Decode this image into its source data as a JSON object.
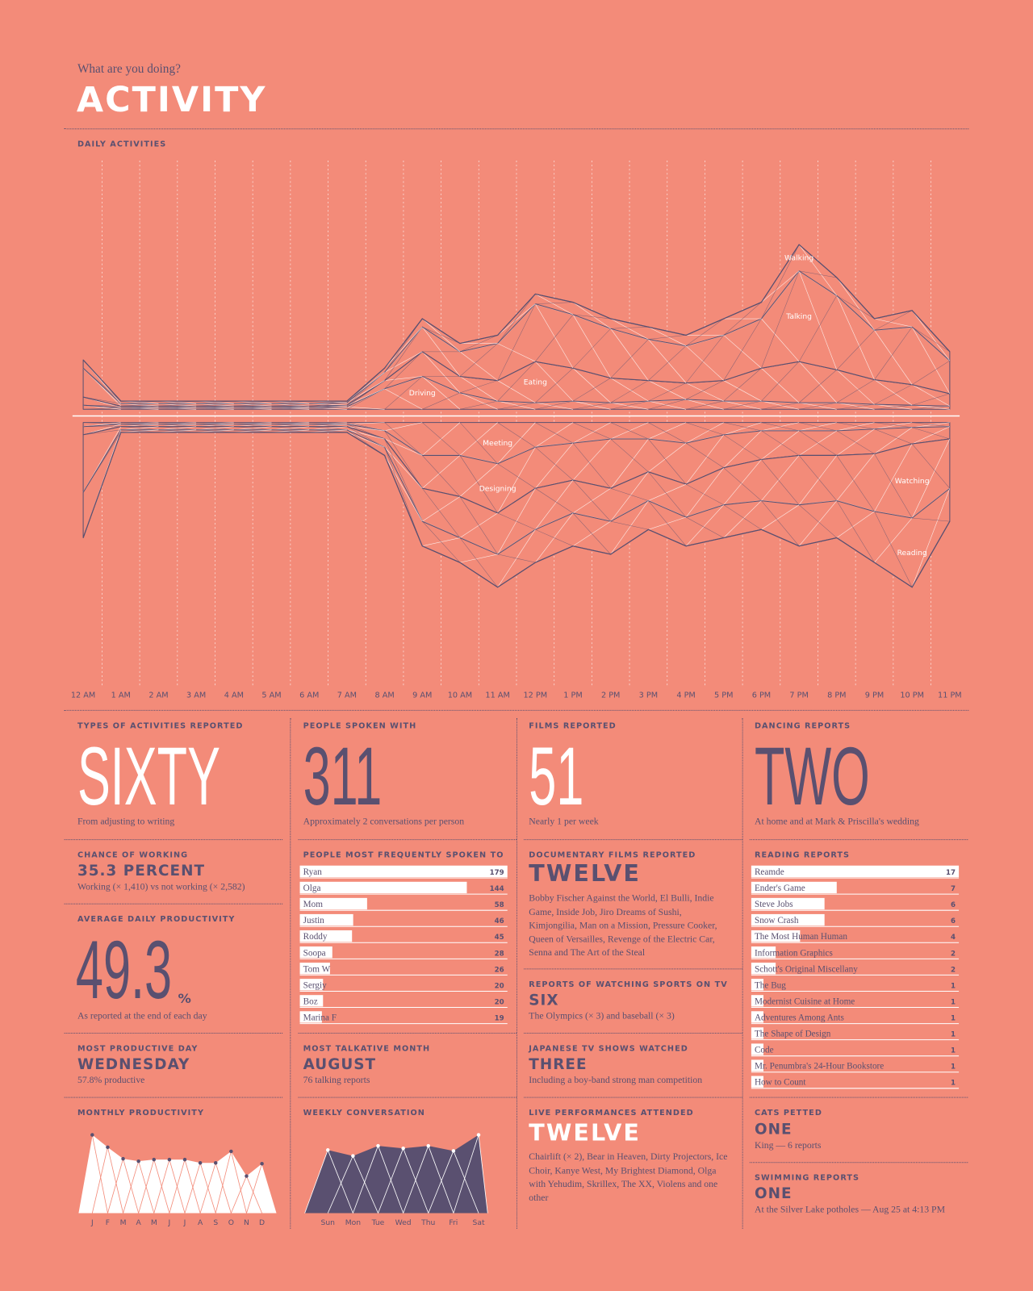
{
  "header": {
    "kicker": "What are you doing?",
    "title": "ACTIVITY"
  },
  "stats": {
    "types": {
      "label": "TYPES OF ACTIVITIES REPORTED",
      "value": "SIXTY",
      "note": "From adjusting to writing"
    },
    "chance": {
      "label": "CHANCE OF WORKING",
      "value": "35.3 PERCENT",
      "note": "Working (× 1,410) vs not working (× 2,582)"
    },
    "productivity": {
      "label": "AVERAGE DAILY PRODUCTIVITY",
      "value": "49.3",
      "unit": "%",
      "note": "As reported at the end of each day"
    },
    "day": {
      "label": "MOST PRODUCTIVE DAY",
      "value": "WEDNESDAY",
      "note": "57.8% productive"
    },
    "people": {
      "label": "PEOPLE SPOKEN WITH",
      "value": "311",
      "note": "Approximately 2 conversations per person"
    },
    "month": {
      "label": "MOST TALKATIVE MONTH",
      "value": "AUGUST",
      "note": "76 talking reports"
    },
    "films": {
      "label": "FILMS REPORTED",
      "value": "51",
      "note": "Nearly 1 per week"
    },
    "docs": {
      "label": "DOCUMENTARY FILMS REPORTED",
      "value": "TWELVE",
      "note": "Bobby Fischer Against the World, El Bulli, Indie Game, Inside Job, Jiro Dreams of Sushi, Kimjongilia, Man on a Mission, Pressure Cooker, Queen of Versailles, Revenge of the Electric Car, Senna and The Art of the Steal"
    },
    "sports": {
      "label": "REPORTS OF WATCHING SPORTS ON TV",
      "value": "SIX",
      "note": "The Olympics (× 3) and baseball (× 3)"
    },
    "japanese": {
      "label": "JAPANESE TV SHOWS WATCHED",
      "value": "THREE",
      "note": "Including a boy-band strong man competition"
    },
    "live": {
      "label": "LIVE PERFORMANCES ATTENDED",
      "value": "TWELVE",
      "note": "Chairlift (× 2), Bear in Heaven, Dirty Projectors, Ice Choir, Kanye West, My Brightest Diamond, Olga with Yehudim, Skrillex, The XX, Violens and one other"
    },
    "dancing": {
      "label": "DANCING REPORTS",
      "value": "TWO",
      "note": "At home and at Mark & Priscilla's wedding"
    },
    "cats": {
      "label": "CATS PETTED",
      "value": "ONE",
      "note": "King — 6 reports"
    },
    "swimming": {
      "label": "SWIMMING REPORTS",
      "value": "ONE",
      "note": "At the Silver Lake potholes — Aug 25 at 4:13 PM"
    }
  },
  "chart_data": [
    {
      "type": "stream",
      "title": "DAILY ACTIVITIES",
      "categories": [
        "12 AM",
        "1 AM",
        "2 AM",
        "3 AM",
        "4 AM",
        "5 AM",
        "6 AM",
        "7 AM",
        "8 AM",
        "9 AM",
        "10 AM",
        "11 AM",
        "12 PM",
        "1 PM",
        "2 PM",
        "3 PM",
        "4 PM",
        "5 PM",
        "6 PM",
        "7 PM",
        "8 PM",
        "9 PM",
        "10 PM",
        "11 PM"
      ],
      "series": [
        {
          "name": "Driving",
          "position": "above",
          "values": [
            5,
            2,
            2,
            2,
            2,
            2,
            2,
            3,
            25,
            40,
            20,
            10,
            8,
            10,
            8,
            10,
            12,
            10,
            10,
            8,
            8,
            6,
            5,
            4
          ]
        },
        {
          "name": "Eating",
          "position": "above",
          "values": [
            10,
            2,
            2,
            2,
            2,
            2,
            2,
            2,
            10,
            30,
            20,
            25,
            50,
            40,
            30,
            25,
            20,
            25,
            40,
            50,
            40,
            30,
            25,
            15
          ]
        },
        {
          "name": "Talking",
          "position": "above",
          "values": [
            35,
            3,
            3,
            3,
            3,
            3,
            3,
            3,
            10,
            30,
            30,
            45,
            70,
            65,
            60,
            50,
            45,
            55,
            60,
            110,
            90,
            60,
            70,
            40
          ]
        },
        {
          "name": "Walking",
          "position": "above",
          "values": [
            10,
            3,
            3,
            3,
            3,
            3,
            3,
            2,
            5,
            10,
            10,
            10,
            12,
            15,
            12,
            15,
            13,
            20,
            20,
            32,
            22,
            14,
            20,
            11
          ]
        },
        {
          "name": "Meeting",
          "position": "below",
          "values": [
            5,
            2,
            2,
            2,
            2,
            2,
            2,
            2,
            10,
            40,
            40,
            50,
            30,
            25,
            20,
            20,
            25,
            15,
            10,
            10,
            10,
            8,
            6,
            5
          ]
        },
        {
          "name": "Designing",
          "position": "below",
          "values": [
            10,
            3,
            3,
            3,
            3,
            3,
            3,
            3,
            10,
            40,
            50,
            60,
            50,
            45,
            60,
            40,
            50,
            40,
            35,
            30,
            30,
            30,
            20,
            15
          ]
        },
        {
          "name": "Watching",
          "position": "below",
          "values": [
            70,
            4,
            4,
            4,
            4,
            4,
            4,
            4,
            10,
            40,
            50,
            50,
            50,
            40,
            40,
            35,
            40,
            45,
            50,
            60,
            55,
            70,
            90,
            60
          ]
        },
        {
          "name": "Reading",
          "position": "below",
          "values": [
            55,
            3,
            3,
            3,
            3,
            3,
            3,
            3,
            10,
            30,
            30,
            40,
            40,
            40,
            40,
            35,
            35,
            40,
            35,
            50,
            45,
            62,
            84,
            40
          ]
        }
      ]
    },
    {
      "type": "hbar",
      "title": "PEOPLE MOST FREQUENTLY SPOKEN TO",
      "color": "#ffffff",
      "categories": [
        "Ryan",
        "Olga",
        "Mom",
        "Justin",
        "Roddy",
        "Soopa",
        "Tom W",
        "Sergiy",
        "Boz",
        "Marina F"
      ],
      "values": [
        179,
        144,
        58,
        46,
        45,
        28,
        26,
        20,
        20,
        19
      ]
    },
    {
      "type": "hbar",
      "title": "READING REPORTS",
      "color": "#ffffff",
      "categories": [
        "Reamde",
        "Ender's Game",
        "Steve Jobs",
        "Snow Crash",
        "The Most Human Human",
        "Information Graphics",
        "Schott's Original Miscellany",
        "The Bug",
        "Modernist Cuisine at Home",
        "Adventures Among Ants",
        "The Shape of Design",
        "Code",
        "Mr. Penumbra's 24-Hour Bookstore",
        "How to Count"
      ],
      "values": [
        17,
        7,
        6,
        6,
        4,
        2,
        2,
        1,
        1,
        1,
        1,
        1,
        1,
        1
      ]
    },
    {
      "type": "area",
      "title": "MONTHLY PRODUCTIVITY",
      "color": "#ffffff",
      "categories": [
        "J",
        "F",
        "M",
        "A",
        "M",
        "J",
        "J",
        "A",
        "S",
        "O",
        "N",
        "D"
      ],
      "values": [
        95,
        80,
        66,
        63,
        65,
        65,
        65,
        61,
        61,
        75,
        45,
        60
      ]
    },
    {
      "type": "area",
      "title": "WEEKLY CONVERSATION",
      "color": "#5a5070",
      "categories": [
        "Sun",
        "Mon",
        "Tue",
        "Wed",
        "Thu",
        "Fri",
        "Sat"
      ],
      "values": [
        75,
        68,
        80,
        77,
        80,
        74,
        93
      ]
    }
  ]
}
